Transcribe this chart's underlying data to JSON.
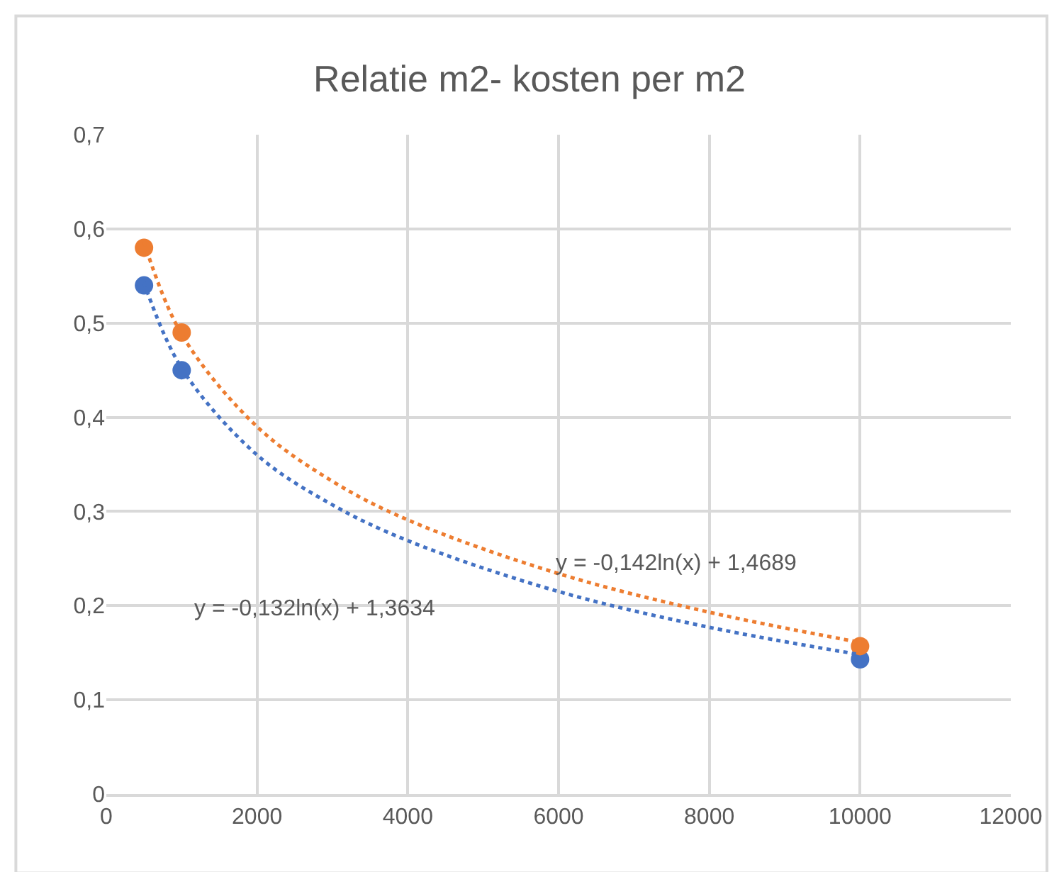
{
  "chart_data": {
    "type": "scatter",
    "title": "Relatie m2- kosten per m2",
    "x": [
      500,
      1000,
      10000
    ],
    "series": [
      {
        "color": "#4472c4",
        "values": [
          0.54,
          0.45,
          0.143
        ],
        "marker": "circle"
      },
      {
        "color": "#ed7d31",
        "values": [
          0.58,
          0.49,
          0.157
        ],
        "marker": "circle"
      },
      {
        "type": "line",
        "color": "#4472c4",
        "x": [
          500,
          1000,
          2000,
          3000,
          4000,
          6000,
          8000,
          10000
        ],
        "values": [
          0.543,
          0.452,
          0.36,
          0.307,
          0.269,
          0.215,
          0.177,
          0.148
        ],
        "line_style": "dotted",
        "marker": "none"
      },
      {
        "type": "line",
        "color": "#ed7d31",
        "x": [
          500,
          1000,
          2000,
          3000,
          4000,
          6000,
          8000,
          10000
        ],
        "values": [
          0.586,
          0.488,
          0.39,
          0.332,
          0.291,
          0.234,
          0.193,
          0.161
        ],
        "line_style": "dotted",
        "marker": "none"
      }
    ],
    "annotations": [
      "y = -0,132ln(x) + 1,3634",
      "y = -0,142ln(x) + 1,4689"
    ],
    "xlim": [
      0,
      12000
    ],
    "xticks": [
      0,
      2000,
      4000,
      6000,
      8000,
      10000,
      12000
    ],
    "ylim": [
      0,
      0.7
    ],
    "yticks": [
      0,
      {
        "value": 0.1,
        "label": "0,1"
      },
      {
        "value": 0.2,
        "label": "0,2"
      },
      {
        "value": 0.3,
        "label": "0,3"
      },
      {
        "value": 0.4,
        "label": "0,4"
      },
      {
        "value": 0.5,
        "label": "0,5"
      },
      {
        "value": 0.6,
        "label": "0,6"
      },
      {
        "value": 0.7,
        "label": "0,7"
      }
    ],
    "grid": true
  }
}
